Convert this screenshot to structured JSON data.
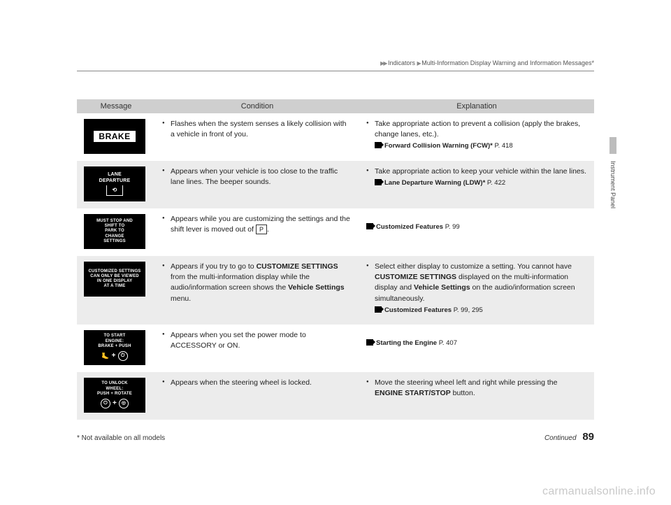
{
  "breadcrumb": {
    "level1": "Indicators",
    "level2": "Multi-Information Display Warning and Information Messages*"
  },
  "side_tab": "Instrument Panel",
  "headers": {
    "message": "Message",
    "condition": "Condition",
    "explanation": "Explanation"
  },
  "rows": [
    {
      "icon_type": "brake",
      "icon_lines": [
        "BRAKE"
      ],
      "condition": "Flashes when the system senses a likely collision with a vehicle in front of you.",
      "explanation": "Take appropriate action to prevent a collision (apply the brakes, change lanes, etc.).",
      "ref_label": "Forward Collision Warning (FCW)*",
      "ref_page": "P. 418"
    },
    {
      "icon_type": "lane",
      "icon_lines": [
        "LANE",
        "DEPARTURE"
      ],
      "condition": "Appears when your vehicle is too close to the traffic lane lines. The beeper sounds.",
      "explanation": "Take appropriate action to keep your vehicle within the lane lines.",
      "ref_label": "Lane Departure Warning (LDW)*",
      "ref_page": "P. 422"
    },
    {
      "icon_type": "text",
      "icon_lines": [
        "MUST STOP AND",
        "SHIFT TO",
        "PARK TO",
        "CHANGE",
        "SETTINGS"
      ],
      "condition_prefix": "Appears while you are customizing the settings and the shift lever is moved out of ",
      "condition_suffix": ".",
      "pbox": "P",
      "explanation": "",
      "ref_label": "Customized Features",
      "ref_page": "P. 99"
    },
    {
      "icon_type": "text",
      "icon_lines": [
        "CUSTOMIZED SETTINGS",
        "CAN ONLY BE VIEWED",
        "IN ONE DISPLAY",
        "AT A TIME"
      ],
      "condition_html": "Appears if you try to go to <b>CUSTOMIZE SETTINGS</b> from the multi-information display while the audio/information screen shows the <b>Vehicle Settings</b> menu.",
      "explanation_html": "Select either display to customize a setting. You cannot have <b>CUSTOMIZE SETTINGS</b> displayed on the multi-information display and <b>Vehicle Settings</b> on the audio/information screen simultaneously.",
      "ref_label": "Customized Features",
      "ref_page": "P. 99, 295"
    },
    {
      "icon_type": "start",
      "icon_lines": [
        "TO START",
        "ENGINE:",
        "BRAKE + PUSH"
      ],
      "condition": "Appears when you set the power mode to ACCESSORY or ON.",
      "explanation": "",
      "ref_label": "Starting the Engine",
      "ref_page": "P. 407"
    },
    {
      "icon_type": "unlock",
      "icon_lines": [
        "TO UNLOCK",
        "WHEEL:",
        "PUSH + ROTATE"
      ],
      "condition": "Appears when the steering wheel is locked.",
      "explanation_html": "Move the steering wheel left and right while pressing the <b>ENGINE START/STOP</b> button.",
      "ref_label": "",
      "ref_page": ""
    }
  ],
  "footnote": "* Not available on all models",
  "continued": "Continued",
  "page_number": "89",
  "watermark": "carmanualsonline.info"
}
